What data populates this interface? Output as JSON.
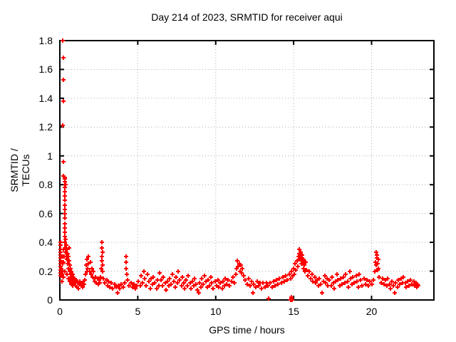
{
  "page": {
    "background": "#ffffff"
  },
  "chart_data": {
    "type": "scatter",
    "title": "Day 214 of 2023, SRMTID for receiver aqui",
    "xlabel": "GPS time / hours",
    "ylabel": "SRMTID / TECUs",
    "xlim": [
      0,
      24
    ],
    "ylim": [
      0,
      1.8
    ],
    "grid": true,
    "legend": "none",
    "marker": "plus",
    "series_color": "#ff0000",
    "grid_color": "#b0b0b0",
    "axis_color": "#000000",
    "xticks": {
      "values": [
        0,
        5,
        10,
        15,
        20
      ],
      "labels": [
        "0",
        "5",
        "10",
        "15",
        "20"
      ]
    },
    "yticks": {
      "values": [
        0,
        0.2,
        0.4,
        0.6,
        0.8,
        1,
        1.2,
        1.4,
        1.6,
        1.8
      ],
      "labels": [
        "0",
        "0.2",
        "0.4",
        "0.6",
        "0.8",
        "1",
        "1.2",
        "1.4",
        "1.6",
        "1.8"
      ]
    },
    "points": [
      [
        0.05,
        0.17
      ],
      [
        0.05,
        0.19
      ],
      [
        0.06,
        0.21
      ],
      [
        0.05,
        0.23
      ],
      [
        0.06,
        0.25
      ],
      [
        0.05,
        0.27
      ],
      [
        0.06,
        0.29
      ],
      [
        0.05,
        0.31
      ],
      [
        0.06,
        0.33
      ],
      [
        0.05,
        0.35
      ],
      [
        0.06,
        0.38
      ],
      [
        0.05,
        0.4
      ],
      [
        0.2,
        1.8
      ],
      [
        0.22,
        1.68
      ],
      [
        0.21,
        1.53
      ],
      [
        0.23,
        1.38
      ],
      [
        0.2,
        1.21
      ],
      [
        0.22,
        0.96
      ],
      [
        0.21,
        0.86
      ],
      [
        0.3,
        0.85
      ],
      [
        0.34,
        0.84
      ],
      [
        0.31,
        0.82
      ],
      [
        0.35,
        0.8
      ],
      [
        0.32,
        0.78
      ],
      [
        0.3,
        0.75
      ],
      [
        0.33,
        0.72
      ],
      [
        0.31,
        0.69
      ],
      [
        0.34,
        0.66
      ],
      [
        0.32,
        0.63
      ],
      [
        0.3,
        0.6
      ],
      [
        0.33,
        0.57
      ],
      [
        0.31,
        0.53
      ],
      [
        0.34,
        0.5
      ],
      [
        0.32,
        0.47
      ],
      [
        0.3,
        0.44
      ],
      [
        0.1,
        0.22
      ],
      [
        0.13,
        0.18
      ],
      [
        0.16,
        0.25
      ],
      [
        0.18,
        0.2
      ],
      [
        0.2,
        0.3
      ],
      [
        0.22,
        0.26
      ],
      [
        0.25,
        0.35
      ],
      [
        0.27,
        0.3
      ],
      [
        0.3,
        0.4
      ],
      [
        0.32,
        0.36
      ],
      [
        0.35,
        0.42
      ],
      [
        0.37,
        0.33
      ],
      [
        0.4,
        0.38
      ],
      [
        0.42,
        0.3
      ],
      [
        0.45,
        0.35
      ],
      [
        0.47,
        0.28
      ],
      [
        0.5,
        0.32
      ],
      [
        0.52,
        0.25
      ],
      [
        0.55,
        0.3
      ],
      [
        0.57,
        0.22
      ],
      [
        0.6,
        0.27
      ],
      [
        0.62,
        0.2
      ],
      [
        0.65,
        0.24
      ],
      [
        0.67,
        0.18
      ],
      [
        0.7,
        0.22
      ],
      [
        0.72,
        0.16
      ],
      [
        0.75,
        0.2
      ],
      [
        0.77,
        0.14
      ],
      [
        0.8,
        0.18
      ],
      [
        0.82,
        0.13
      ],
      [
        0.85,
        0.16
      ],
      [
        0.87,
        0.12
      ],
      [
        0.9,
        0.15
      ],
      [
        0.14,
        0.13
      ],
      [
        0.24,
        0.16
      ],
      [
        0.34,
        0.2
      ],
      [
        0.44,
        0.18
      ],
      [
        0.54,
        0.15
      ],
      [
        0.64,
        0.13
      ],
      [
        0.74,
        0.11
      ],
      [
        0.84,
        0.1
      ],
      [
        0.58,
        0.36
      ],
      [
        0.95,
        0.12
      ],
      [
        1.0,
        0.1
      ],
      [
        1.05,
        0.14
      ],
      [
        1.1,
        0.09
      ],
      [
        1.15,
        0.12
      ],
      [
        1.2,
        0.08
      ],
      [
        1.25,
        0.11
      ],
      [
        1.3,
        0.13
      ],
      [
        1.35,
        0.1
      ],
      [
        1.4,
        0.12
      ],
      [
        1.45,
        0.09
      ],
      [
        1.5,
        0.13
      ],
      [
        1.55,
        0.11
      ],
      [
        1.6,
        0.14
      ],
      [
        1.65,
        0.18
      ],
      [
        1.7,
        0.24
      ],
      [
        1.72,
        0.2
      ],
      [
        1.75,
        0.28
      ],
      [
        1.8,
        0.22
      ],
      [
        1.82,
        0.3
      ],
      [
        1.85,
        0.25
      ],
      [
        1.9,
        0.2
      ],
      [
        1.95,
        0.26
      ],
      [
        2.0,
        0.18
      ],
      [
        2.05,
        0.22
      ],
      [
        2.1,
        0.16
      ],
      [
        2.15,
        0.2
      ],
      [
        2.2,
        0.15
      ],
      [
        2.25,
        0.13
      ],
      [
        2.3,
        0.16
      ],
      [
        2.35,
        0.12
      ],
      [
        2.4,
        0.15
      ],
      [
        2.45,
        0.11
      ],
      [
        2.5,
        0.14
      ],
      [
        2.55,
        0.12
      ],
      [
        2.6,
        0.16
      ],
      [
        2.65,
        0.22
      ],
      [
        2.7,
        0.4
      ],
      [
        2.68,
        0.36
      ],
      [
        2.72,
        0.33
      ],
      [
        2.7,
        0.3
      ],
      [
        2.68,
        0.27
      ],
      [
        2.72,
        0.24
      ],
      [
        2.75,
        0.2
      ],
      [
        2.8,
        0.15
      ],
      [
        2.9,
        0.12
      ],
      [
        3.0,
        0.14
      ],
      [
        3.05,
        0.1
      ],
      [
        3.1,
        0.13
      ],
      [
        3.2,
        0.09
      ],
      [
        3.3,
        0.12
      ],
      [
        3.4,
        0.08
      ],
      [
        3.5,
        0.11
      ],
      [
        3.6,
        0.09
      ],
      [
        3.7,
        0.05
      ],
      [
        3.75,
        0.1
      ],
      [
        3.85,
        0.08
      ],
      [
        3.95,
        0.11
      ],
      [
        4.05,
        0.09
      ],
      [
        4.15,
        0.12
      ],
      [
        4.25,
        0.3
      ],
      [
        4.27,
        0.26
      ],
      [
        4.25,
        0.22
      ],
      [
        4.3,
        0.18
      ],
      [
        4.35,
        0.14
      ],
      [
        4.45,
        0.1
      ],
      [
        4.55,
        0.12
      ],
      [
        4.65,
        0.09
      ],
      [
        4.75,
        0.11
      ],
      [
        4.85,
        0.08
      ],
      [
        4.95,
        0.1
      ],
      [
        5.05,
        0.13
      ],
      [
        5.15,
        0.1
      ],
      [
        5.2,
        0.17
      ],
      [
        5.3,
        0.12
      ],
      [
        5.4,
        0.2
      ],
      [
        5.45,
        0.15
      ],
      [
        5.55,
        0.1
      ],
      [
        5.6,
        0.18
      ],
      [
        5.7,
        0.13
      ],
      [
        5.8,
        0.08
      ],
      [
        5.85,
        0.15
      ],
      [
        5.95,
        0.11
      ],
      [
        6.0,
        0.16
      ],
      [
        6.1,
        0.12
      ],
      [
        6.2,
        0.08
      ],
      [
        6.25,
        0.14
      ],
      [
        6.35,
        0.1
      ],
      [
        6.4,
        0.19
      ],
      [
        6.5,
        0.14
      ],
      [
        6.6,
        0.1
      ],
      [
        6.65,
        0.16
      ],
      [
        6.75,
        0.12
      ],
      [
        6.8,
        0.07
      ],
      [
        6.9,
        0.13
      ],
      [
        7.0,
        0.1
      ],
      [
        7.05,
        0.15
      ],
      [
        7.15,
        0.11
      ],
      [
        7.2,
        0.18
      ],
      [
        7.3,
        0.13
      ],
      [
        7.4,
        0.09
      ],
      [
        7.45,
        0.16
      ],
      [
        7.55,
        0.12
      ],
      [
        7.6,
        0.2
      ],
      [
        7.7,
        0.14
      ],
      [
        7.8,
        0.1
      ],
      [
        7.85,
        0.16
      ],
      [
        7.95,
        0.12
      ],
      [
        8.0,
        0.08
      ],
      [
        8.1,
        0.14
      ],
      [
        8.2,
        0.1
      ],
      [
        8.25,
        0.17
      ],
      [
        8.35,
        0.12
      ],
      [
        8.4,
        0.08
      ],
      [
        8.5,
        0.13
      ],
      [
        8.6,
        0.1
      ],
      [
        8.65,
        0.15
      ],
      [
        8.75,
        0.11
      ],
      [
        8.8,
        0.07
      ],
      [
        8.9,
        0.05
      ],
      [
        8.95,
        0.12
      ],
      [
        9.05,
        0.09
      ],
      [
        9.1,
        0.15
      ],
      [
        9.2,
        0.11
      ],
      [
        9.3,
        0.17
      ],
      [
        9.35,
        0.13
      ],
      [
        9.45,
        0.09
      ],
      [
        9.5,
        0.14
      ],
      [
        9.6,
        0.1
      ],
      [
        9.7,
        0.16
      ],
      [
        9.75,
        0.12
      ],
      [
        9.85,
        0.08
      ],
      [
        9.95,
        0.13
      ],
      [
        10.05,
        0.1
      ],
      [
        10.15,
        0.14
      ],
      [
        10.2,
        0.09
      ],
      [
        10.3,
        0.12
      ],
      [
        10.4,
        0.08
      ],
      [
        10.45,
        0.13
      ],
      [
        10.55,
        0.1
      ],
      [
        10.6,
        0.15
      ],
      [
        10.7,
        0.11
      ],
      [
        10.8,
        0.14
      ],
      [
        10.9,
        0.1
      ],
      [
        11.0,
        0.13
      ],
      [
        11.1,
        0.16
      ],
      [
        11.2,
        0.12
      ],
      [
        11.3,
        0.18
      ],
      [
        11.35,
        0.22
      ],
      [
        11.4,
        0.27
      ],
      [
        11.45,
        0.23
      ],
      [
        11.5,
        0.25
      ],
      [
        11.55,
        0.2
      ],
      [
        11.6,
        0.24
      ],
      [
        11.65,
        0.19
      ],
      [
        11.7,
        0.22
      ],
      [
        11.8,
        0.17
      ],
      [
        11.9,
        0.14
      ],
      [
        12.0,
        0.11
      ],
      [
        12.1,
        0.15
      ],
      [
        12.2,
        0.1
      ],
      [
        12.3,
        0.13
      ],
      [
        12.4,
        0.05
      ],
      [
        12.45,
        0.11
      ],
      [
        12.55,
        0.09
      ],
      [
        12.65,
        0.13
      ],
      [
        12.75,
        0.1
      ],
      [
        12.85,
        0.12
      ],
      [
        12.95,
        0.08
      ],
      [
        13.05,
        0.12
      ],
      [
        13.15,
        0.09
      ],
      [
        13.25,
        0.12
      ],
      [
        13.35,
        0.1
      ],
      [
        13.4,
        0.01
      ],
      [
        13.5,
        0.12
      ],
      [
        13.6,
        0.09
      ],
      [
        13.7,
        0.13
      ],
      [
        13.8,
        0.1
      ],
      [
        13.9,
        0.14
      ],
      [
        14.0,
        0.11
      ],
      [
        14.1,
        0.15
      ],
      [
        14.2,
        0.12
      ],
      [
        14.3,
        0.16
      ],
      [
        14.4,
        0.13
      ],
      [
        14.5,
        0.17
      ],
      [
        14.6,
        0.14
      ],
      [
        14.82,
        0.0
      ],
      [
        14.86,
        0.01
      ],
      [
        14.9,
        0.0
      ],
      [
        14.86,
        0.02
      ],
      [
        14.7,
        0.18
      ],
      [
        14.8,
        0.15
      ],
      [
        14.85,
        0.2
      ],
      [
        14.95,
        0.17
      ],
      [
        15.0,
        0.22
      ],
      [
        15.05,
        0.18
      ],
      [
        15.1,
        0.25
      ],
      [
        15.15,
        0.21
      ],
      [
        15.2,
        0.27
      ],
      [
        15.25,
        0.23
      ],
      [
        15.3,
        0.3
      ],
      [
        15.35,
        0.35
      ],
      [
        15.38,
        0.32
      ],
      [
        15.42,
        0.28
      ],
      [
        15.45,
        0.33
      ],
      [
        15.5,
        0.29
      ],
      [
        15.52,
        0.25
      ],
      [
        15.55,
        0.31
      ],
      [
        15.6,
        0.27
      ],
      [
        15.62,
        0.22
      ],
      [
        15.65,
        0.28
      ],
      [
        15.7,
        0.24
      ],
      [
        15.72,
        0.2
      ],
      [
        15.75,
        0.26
      ],
      [
        15.8,
        0.21
      ],
      [
        15.9,
        0.17
      ],
      [
        16.0,
        0.2
      ],
      [
        16.1,
        0.15
      ],
      [
        16.2,
        0.18
      ],
      [
        16.25,
        0.13
      ],
      [
        16.35,
        0.16
      ],
      [
        16.4,
        0.12
      ],
      [
        16.5,
        0.14
      ],
      [
        16.6,
        0.1
      ],
      [
        16.65,
        0.15
      ],
      [
        16.75,
        0.11
      ],
      [
        16.8,
        0.05
      ],
      [
        16.9,
        0.13
      ],
      [
        17.0,
        0.17
      ],
      [
        17.05,
        0.12
      ],
      [
        17.15,
        0.15
      ],
      [
        17.2,
        0.1
      ],
      [
        17.3,
        0.14
      ],
      [
        17.4,
        0.1
      ],
      [
        17.45,
        0.16
      ],
      [
        17.55,
        0.12
      ],
      [
        17.6,
        0.08
      ],
      [
        17.7,
        0.13
      ],
      [
        17.8,
        0.18
      ],
      [
        17.85,
        0.14
      ],
      [
        17.95,
        0.1
      ],
      [
        18.0,
        0.15
      ],
      [
        18.1,
        0.11
      ],
      [
        18.2,
        0.16
      ],
      [
        18.3,
        0.12
      ],
      [
        18.35,
        0.18
      ],
      [
        18.45,
        0.13
      ],
      [
        18.5,
        0.09
      ],
      [
        18.6,
        0.2
      ],
      [
        18.65,
        0.15
      ],
      [
        18.75,
        0.11
      ],
      [
        18.8,
        0.16
      ],
      [
        18.9,
        0.12
      ],
      [
        19.0,
        0.17
      ],
      [
        19.05,
        0.13
      ],
      [
        19.15,
        0.09
      ],
      [
        19.2,
        0.18
      ],
      [
        19.3,
        0.14
      ],
      [
        19.4,
        0.1
      ],
      [
        19.5,
        0.15
      ],
      [
        19.6,
        0.11
      ],
      [
        19.7,
        0.14
      ],
      [
        19.8,
        0.1
      ],
      [
        19.9,
        0.13
      ],
      [
        20.0,
        0.11
      ],
      [
        20.1,
        0.14
      ],
      [
        20.2,
        0.2
      ],
      [
        20.25,
        0.26
      ],
      [
        20.3,
        0.33
      ],
      [
        20.32,
        0.29
      ],
      [
        20.35,
        0.31
      ],
      [
        20.4,
        0.25
      ],
      [
        20.42,
        0.28
      ],
      [
        20.45,
        0.22
      ],
      [
        20.3,
        0.24
      ],
      [
        20.38,
        0.21
      ],
      [
        20.5,
        0.16
      ],
      [
        20.6,
        0.12
      ],
      [
        20.7,
        0.15
      ],
      [
        20.8,
        0.11
      ],
      [
        20.9,
        0.14
      ],
      [
        21.0,
        0.1
      ],
      [
        21.05,
        0.15
      ],
      [
        21.15,
        0.11
      ],
      [
        21.2,
        0.08
      ],
      [
        21.3,
        0.13
      ],
      [
        21.4,
        0.1
      ],
      [
        21.5,
        0.05
      ],
      [
        21.55,
        0.12
      ],
      [
        21.65,
        0.09
      ],
      [
        21.7,
        0.14
      ],
      [
        21.8,
        0.11
      ],
      [
        21.9,
        0.15
      ],
      [
        22.0,
        0.12
      ],
      [
        22.05,
        0.16
      ],
      [
        22.15,
        0.12
      ],
      [
        22.2,
        0.09
      ],
      [
        22.3,
        0.13
      ],
      [
        22.4,
        0.1
      ],
      [
        22.5,
        0.14
      ],
      [
        22.6,
        0.11
      ],
      [
        22.7,
        0.13
      ],
      [
        22.75,
        0.1
      ],
      [
        22.85,
        0.12
      ],
      [
        22.9,
        0.09
      ],
      [
        22.95,
        0.11
      ],
      [
        23.0,
        0.1
      ]
    ]
  }
}
